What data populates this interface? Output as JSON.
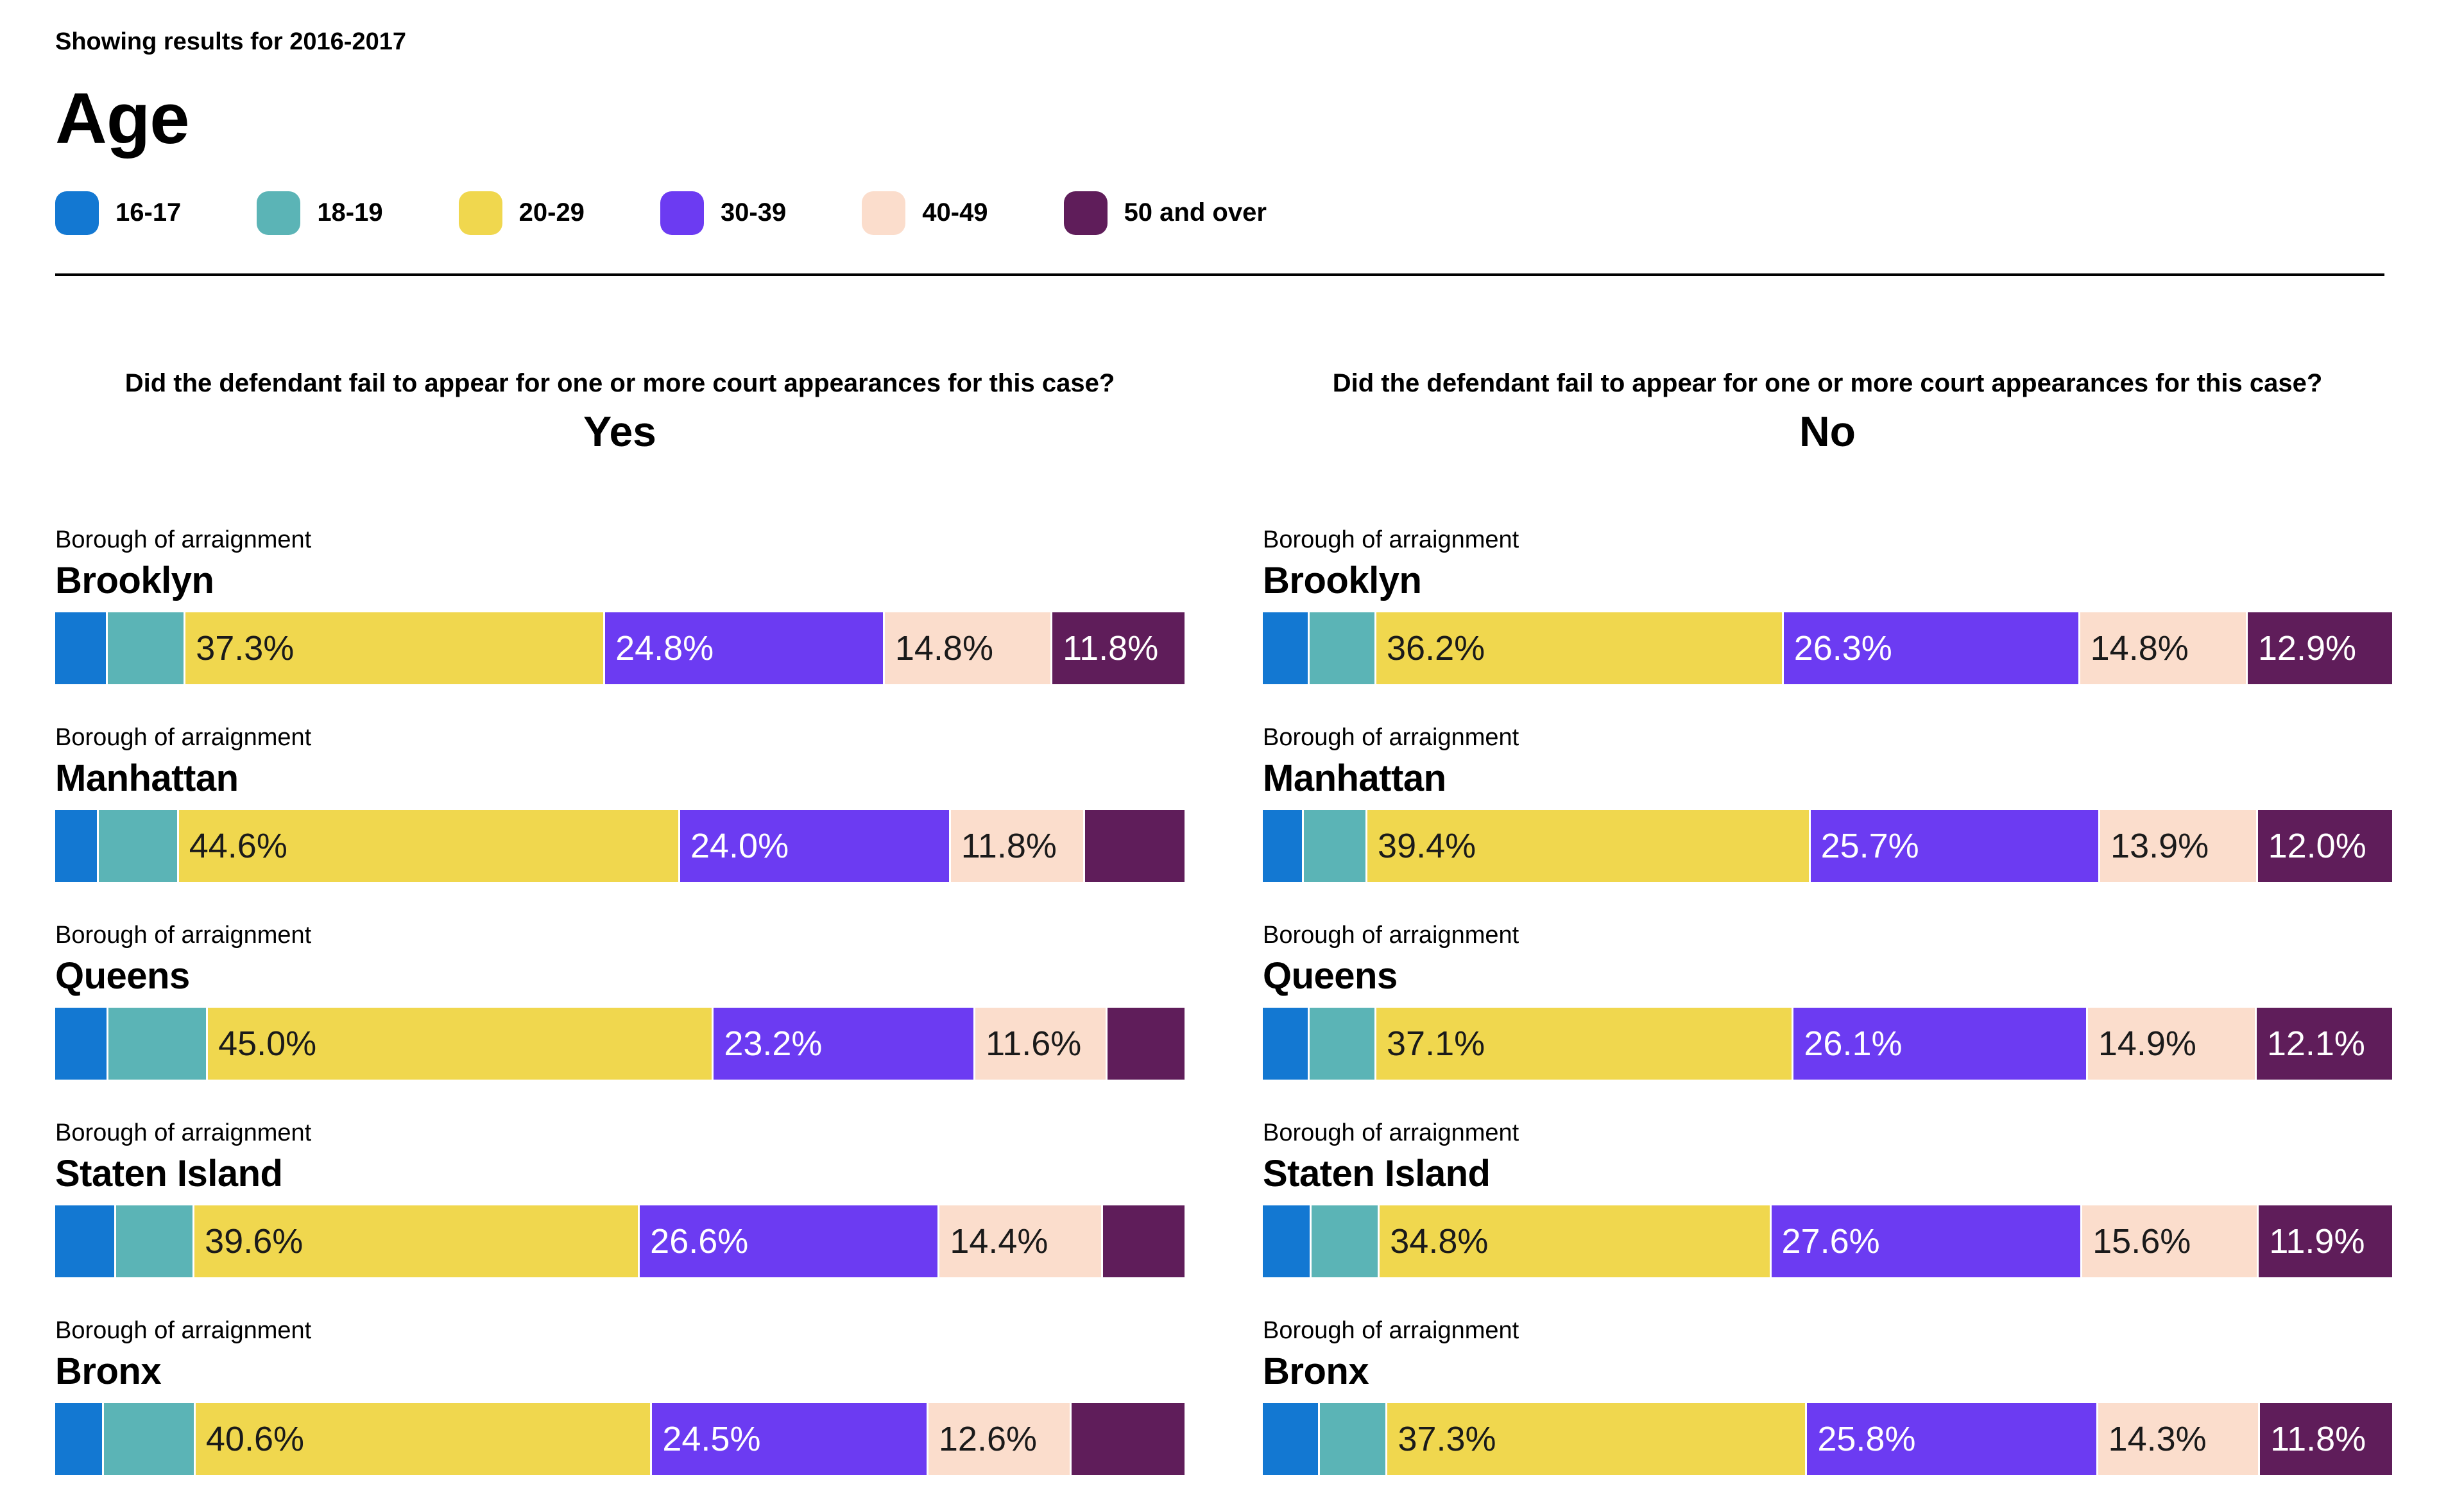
{
  "header": {
    "showing_results": "Showing results for 2016-2017",
    "title": "Age"
  },
  "legend": {
    "items": [
      {
        "label": "16-17",
        "color": "#1378d2"
      },
      {
        "label": "18-19",
        "color": "#5bb4b6"
      },
      {
        "label": "20-29",
        "color": "#f0d74e"
      },
      {
        "label": "30-39",
        "color": "#6c3bf2"
      },
      {
        "label": "40-49",
        "color": "#fbddcc"
      },
      {
        "label": "50 and over",
        "color": "#5f1d5a"
      }
    ]
  },
  "chart_data": {
    "type": "bar",
    "orientation": "horizontal-stacked",
    "unit": "percent",
    "title": "Age",
    "subtitle": "Showing results for 2016-2017",
    "categories": [
      "16-17",
      "18-19",
      "20-29",
      "30-39",
      "40-49",
      "50 and over"
    ],
    "colors": [
      "#1378d2",
      "#5bb4b6",
      "#f0d74e",
      "#6c3bf2",
      "#fbddcc",
      "#5f1d5a"
    ],
    "label_text_colors": [
      "#ffffff",
      "#1a1a1a",
      "#1a1a1a",
      "#ffffff",
      "#1a1a1a",
      "#ffffff"
    ],
    "row_label": "Borough of arraignment",
    "xlim": [
      0,
      100
    ],
    "grid": false,
    "legend_position": "top",
    "panels": [
      {
        "question": "Did the defendant fail to appear for one or more court appearances for this case?",
        "answer": "Yes",
        "rows": [
          {
            "borough": "Brooklyn",
            "values": [
              4.5,
              6.8,
              37.3,
              24.8,
              14.8,
              11.8
            ],
            "labels": [
              "",
              "",
              "37.3%",
              "24.8%",
              "14.8%",
              "11.8%"
            ]
          },
          {
            "borough": "Manhattan",
            "values": [
              3.7,
              7.0,
              44.6,
              24.0,
              11.8,
              8.9
            ],
            "labels": [
              "",
              "",
              "44.6%",
              "24.0%",
              "11.8%",
              ""
            ]
          },
          {
            "borough": "Queens",
            "values": [
              4.6,
              8.7,
              45.0,
              23.2,
              11.6,
              6.9
            ],
            "labels": [
              "",
              "",
              "45.0%",
              "23.2%",
              "11.6%",
              ""
            ]
          },
          {
            "borough": "Staten Island",
            "values": [
              5.3,
              6.8,
              39.6,
              26.6,
              14.4,
              7.3
            ],
            "labels": [
              "",
              "",
              "39.6%",
              "26.6%",
              "14.4%",
              ""
            ]
          },
          {
            "borough": "Bronx",
            "values": [
              4.2,
              8.0,
              40.6,
              24.5,
              12.6,
              10.1
            ],
            "labels": [
              "",
              "",
              "40.6%",
              "24.5%",
              "12.6%",
              ""
            ]
          }
        ]
      },
      {
        "question": "Did the defendant fail to appear for one or more court appearances for this case?",
        "answer": "No",
        "rows": [
          {
            "borough": "Brooklyn",
            "values": [
              4.0,
              5.8,
              36.2,
              26.3,
              14.8,
              12.9
            ],
            "labels": [
              "",
              "",
              "36.2%",
              "26.3%",
              "14.8%",
              "12.9%"
            ]
          },
          {
            "borough": "Manhattan",
            "values": [
              3.5,
              5.5,
              39.4,
              25.7,
              13.9,
              12.0
            ],
            "labels": [
              "",
              "",
              "39.4%",
              "25.7%",
              "13.9%",
              "12.0%"
            ]
          },
          {
            "borough": "Queens",
            "values": [
              4.0,
              5.8,
              37.1,
              26.1,
              14.9,
              12.1
            ],
            "labels": [
              "",
              "",
              "37.1%",
              "26.1%",
              "14.9%",
              "12.1%"
            ]
          },
          {
            "borough": "Staten Island",
            "values": [
              4.2,
              5.9,
              34.8,
              27.6,
              15.6,
              11.9
            ],
            "labels": [
              "",
              "",
              "34.8%",
              "27.6%",
              "15.6%",
              "11.9%"
            ]
          },
          {
            "borough": "Bronx",
            "values": [
              4.9,
              5.9,
              37.3,
              25.8,
              14.3,
              11.8
            ],
            "labels": [
              "",
              "",
              "37.3%",
              "25.8%",
              "14.3%",
              "11.8%"
            ]
          }
        ]
      }
    ]
  }
}
